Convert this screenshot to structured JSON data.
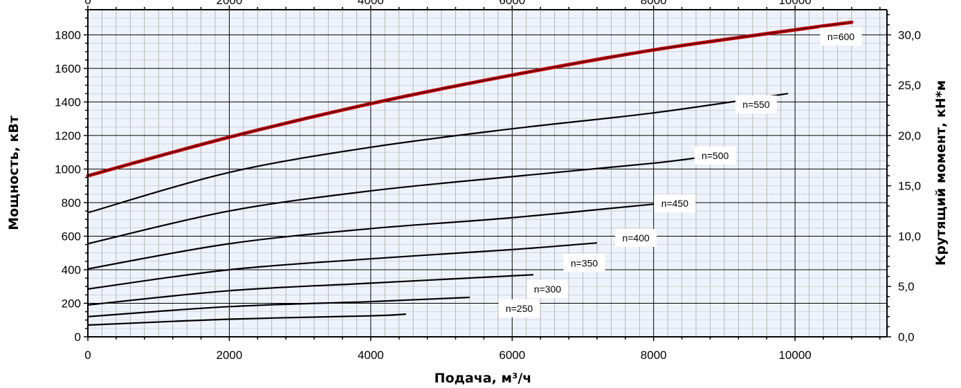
{
  "chart_data": {
    "type": "line",
    "xlabel": "Подача, м³/ч",
    "ylabel": "Мощность, кВт",
    "y2label": "Крутящий момент, кН*м",
    "xlim": [
      0,
      11300
    ],
    "ylim": [
      0,
      1950
    ],
    "y2lim": [
      0,
      32.5
    ],
    "x_ticks": [
      "0",
      "2000",
      "4000",
      "6000",
      "8000",
      "10000"
    ],
    "y_ticks": [
      "0",
      "200",
      "400",
      "600",
      "800",
      "1000",
      "1200",
      "1400",
      "1600",
      "1800"
    ],
    "y2_ticks": [
      "0,0",
      "5,0",
      "10,0",
      "15,0",
      "20,0",
      "25,0",
      "30,0"
    ],
    "grid": true,
    "series": [
      {
        "name": "n=600",
        "color": "#c00000",
        "highlight": true,
        "points": [
          [
            0,
            960
          ],
          [
            2000,
            1190
          ],
          [
            4000,
            1390
          ],
          [
            6000,
            1560
          ],
          [
            8000,
            1710
          ],
          [
            10000,
            1830
          ],
          [
            10800,
            1875
          ]
        ]
      },
      {
        "name": "n=550",
        "color": "#000000",
        "points": [
          [
            0,
            740
          ],
          [
            2000,
            980
          ],
          [
            4000,
            1130
          ],
          [
            6000,
            1240
          ],
          [
            8000,
            1335
          ],
          [
            9900,
            1450
          ]
        ]
      },
      {
        "name": "n=500",
        "color": "#000000",
        "points": [
          [
            0,
            555
          ],
          [
            2000,
            750
          ],
          [
            4000,
            870
          ],
          [
            6000,
            955
          ],
          [
            8000,
            1035
          ],
          [
            9000,
            1090
          ]
        ]
      },
      {
        "name": "n=450",
        "color": "#000000",
        "points": [
          [
            0,
            405
          ],
          [
            2000,
            555
          ],
          [
            4000,
            645
          ],
          [
            6000,
            710
          ],
          [
            8100,
            795
          ]
        ]
      },
      {
        "name": "n=400",
        "color": "#000000",
        "points": [
          [
            0,
            285
          ],
          [
            2000,
            400
          ],
          [
            4000,
            465
          ],
          [
            6000,
            520
          ],
          [
            7200,
            560
          ]
        ]
      },
      {
        "name": "n=350",
        "color": "#000000",
        "points": [
          [
            0,
            190
          ],
          [
            2000,
            275
          ],
          [
            4000,
            320
          ],
          [
            6300,
            370
          ]
        ]
      },
      {
        "name": "n=300",
        "color": "#000000",
        "points": [
          [
            0,
            120
          ],
          [
            2000,
            180
          ],
          [
            4000,
            210
          ],
          [
            5400,
            235
          ]
        ]
      },
      {
        "name": "n=250",
        "color": "#000000",
        "points": [
          [
            0,
            70
          ],
          [
            2000,
            105
          ],
          [
            4000,
            125
          ],
          [
            4500,
            135
          ]
        ]
      }
    ],
    "annotations": [
      {
        "text": "n=600",
        "x": 10650,
        "y": 1790
      },
      {
        "text": "n=550",
        "x": 9450,
        "y": 1385
      },
      {
        "text": "n=500",
        "x": 8870,
        "y": 1080
      },
      {
        "text": "n=450",
        "x": 8300,
        "y": 795
      },
      {
        "text": "n=400",
        "x": 7750,
        "y": 590
      },
      {
        "text": "n=350",
        "x": 7020,
        "y": 440
      },
      {
        "text": "n=300",
        "x": 6500,
        "y": 285
      },
      {
        "text": "n=250",
        "x": 6100,
        "y": 170
      }
    ],
    "colors": {
      "plot_background": "#eef3fb",
      "highlight_series": "#c00000"
    }
  }
}
